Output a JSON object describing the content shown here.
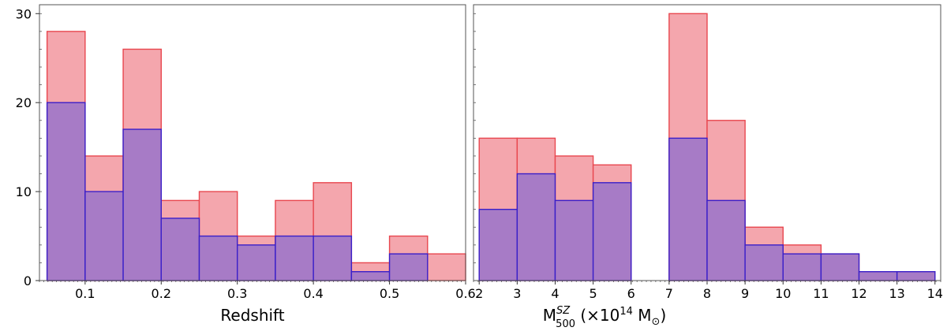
{
  "chart_data": [
    {
      "type": "bar",
      "xlabel": "Redshift",
      "ylabel": "",
      "xlim": [
        0.04,
        0.6
      ],
      "ylim": [
        0,
        31
      ],
      "xticks": [
        "0.1",
        "0.2",
        "0.3",
        "0.4",
        "0.5",
        "0.6"
      ],
      "yticks": [
        "0",
        "10",
        "20",
        "30"
      ],
      "bin_edges": [
        0.05,
        0.1,
        0.15,
        0.2,
        0.25,
        0.3,
        0.35,
        0.4,
        0.45,
        0.5,
        0.55,
        0.6
      ],
      "series": [
        {
          "color": "#f4a6ad",
          "edge_color": "#e8474f",
          "values": [
            28,
            14,
            26,
            9,
            10,
            5,
            9,
            11,
            2,
            5,
            3
          ]
        },
        {
          "color": "#a77bc6",
          "edge_color": "#3a1fc8",
          "values": [
            20,
            10,
            17,
            7,
            5,
            4,
            5,
            5,
            1,
            3,
            0
          ]
        }
      ],
      "grid": false
    },
    {
      "type": "bar",
      "xlabel": {
        "main": "M",
        "sup": "SZ",
        "sub": "500",
        "rest": "(×10",
        "exp": "14",
        "tail": "M",
        "tail_sub": "⊙",
        "close": ")"
      },
      "ylabel": "",
      "xlim": [
        1.85,
        14.15
      ],
      "ylim": [
        0,
        31
      ],
      "xticks": [
        "2",
        "3",
        "4",
        "5",
        "6",
        "7",
        "8",
        "9",
        "10",
        "11",
        "12",
        "13",
        "14"
      ],
      "yticks": [],
      "bin_edges": [
        2,
        3,
        4,
        5,
        6,
        7,
        8,
        9,
        10,
        11,
        12,
        13,
        14
      ],
      "series": [
        {
          "color": "#f4a6ad",
          "edge_color": "#e8474f",
          "values": [
            16,
            16,
            14,
            13,
            0,
            30,
            18,
            6,
            4,
            3,
            1,
            1
          ]
        },
        {
          "color": "#a77bc6",
          "edge_color": "#3a1fc8",
          "values": [
            8,
            12,
            9,
            11,
            0,
            16,
            9,
            4,
            3,
            3,
            1,
            1
          ]
        }
      ],
      "grid": false
    }
  ]
}
